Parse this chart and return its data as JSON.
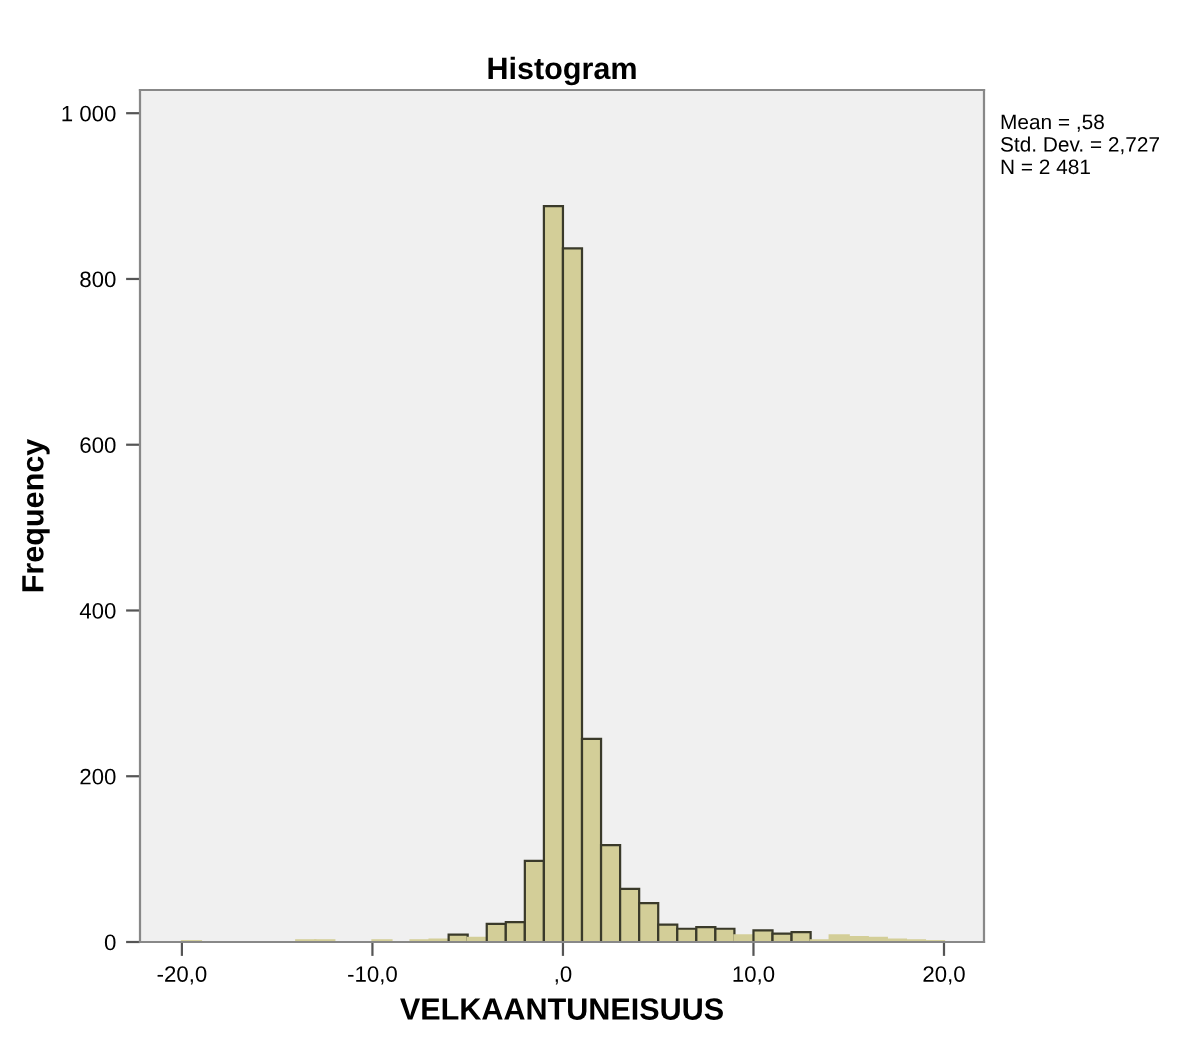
{
  "chart_data": {
    "type": "histogram",
    "title": "Histogram",
    "xlabel": "VELKAANTUNEISUUS",
    "ylabel": "Frequency",
    "bins": [
      -20,
      -19,
      -18,
      -17,
      -16,
      -15,
      -14,
      -13,
      -12,
      -11,
      -10,
      -9,
      -8,
      -7,
      -6,
      -5,
      -4,
      -3,
      -2,
      -1,
      0,
      1,
      2,
      3,
      4,
      5,
      6,
      7,
      8,
      9,
      10,
      11,
      12,
      13,
      14,
      15,
      16,
      17,
      18,
      19,
      20
    ],
    "values": [
      1,
      0,
      null,
      null,
      null,
      null,
      2,
      2,
      0,
      null,
      2,
      null,
      2,
      3,
      9,
      5,
      22,
      24,
      98,
      888,
      837,
      245,
      117,
      64,
      47,
      21,
      16,
      18,
      16,
      8,
      14,
      10,
      12,
      2,
      8,
      6,
      5,
      3,
      2,
      1
    ],
    "color": "#d3ce98",
    "xlim": [
      -22.2,
      22.1
    ],
    "ylim": [
      0,
      1028
    ],
    "xticks": [
      {
        "value": -20,
        "label": "-20,0"
      },
      {
        "value": -10,
        "label": "-10,0"
      },
      {
        "value": 0,
        "label": ",0"
      },
      {
        "value": 10,
        "label": "10,0"
      },
      {
        "value": 20,
        "label": "20,0"
      }
    ],
    "yticks": [
      0,
      200,
      400,
      600,
      800,
      {
        "value": 1000,
        "label": "1 000"
      }
    ],
    "annotations": [
      "Mean = ,58\nStd. Dev. = 2,727\nN = 2 481"
    ],
    "grid": false
  }
}
